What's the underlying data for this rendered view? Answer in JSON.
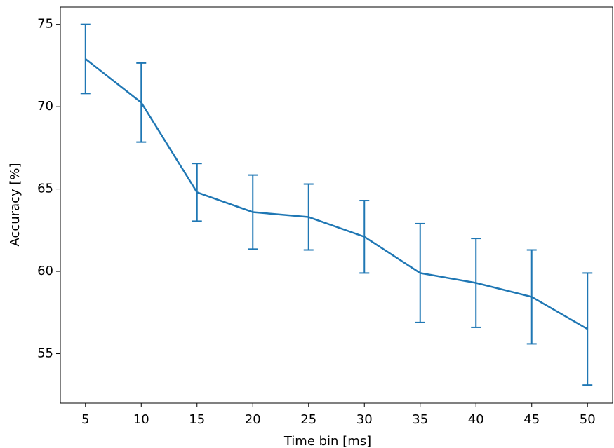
{
  "chart_data": {
    "type": "line",
    "x_label": "Time bin [ms]",
    "y_label": "Accuracy [%]",
    "x": [
      5,
      10,
      15,
      20,
      25,
      30,
      35,
      40,
      45,
      50
    ],
    "series": [
      {
        "color": "#1f77b4",
        "values": [
          72.9,
          70.25,
          64.8,
          63.6,
          63.3,
          62.1,
          59.9,
          59.3,
          58.45,
          56.5
        ],
        "errors": [
          2.1,
          2.4,
          1.75,
          2.25,
          2.0,
          2.2,
          3.0,
          2.7,
          2.85,
          3.4
        ]
      }
    ],
    "xlim": [
      2.75,
      52.25
    ],
    "xticks": [
      5,
      10,
      15,
      20,
      25,
      30,
      35,
      40,
      45,
      50
    ],
    "ylim": [
      52.0,
      76.05
    ],
    "yticks": [
      55,
      60,
      65,
      70,
      75
    ]
  }
}
